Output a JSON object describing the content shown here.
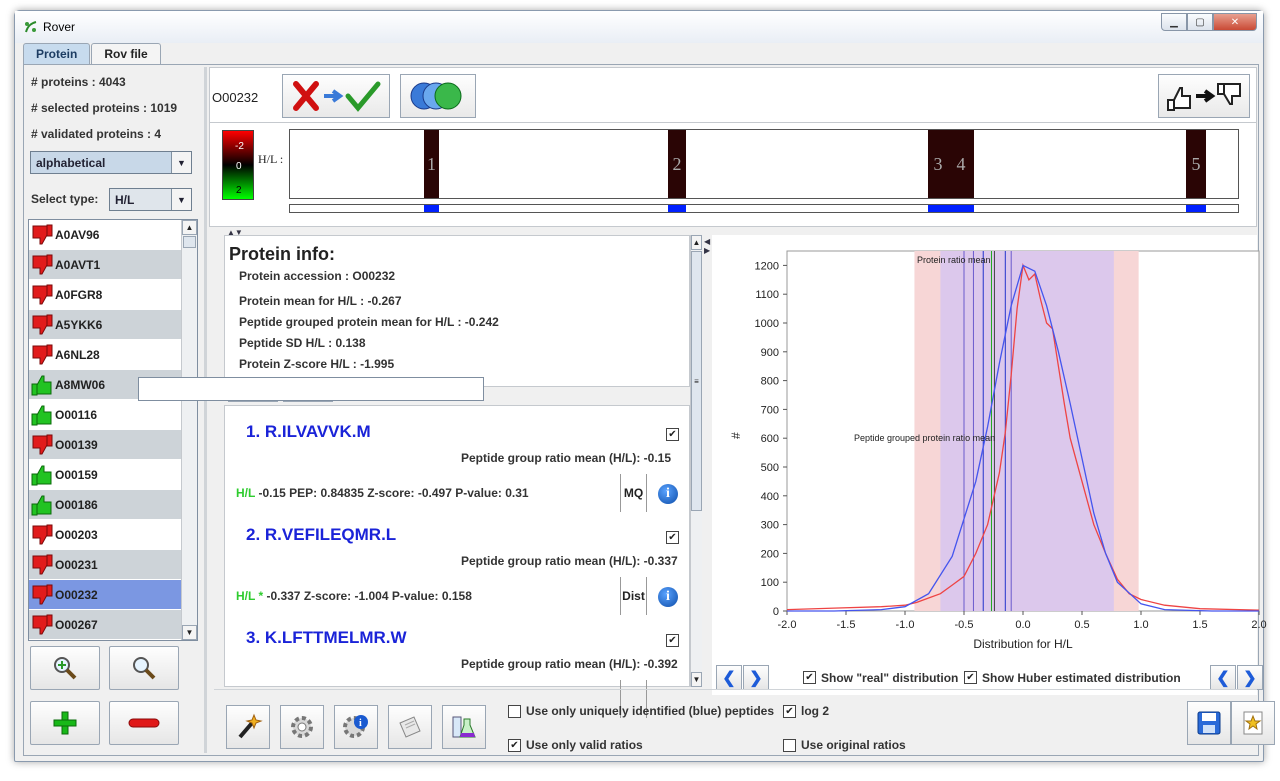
{
  "window": {
    "title": "Rover",
    "min_label": "▁",
    "max_label": "▢",
    "close_label": "✕"
  },
  "tabs": [
    {
      "label": "Protein"
    },
    {
      "label": "Rov file"
    }
  ],
  "stats": {
    "proteins": "# proteins : 4043",
    "selected": "# selected proteins : 1019",
    "validated": "# validated proteins : 4"
  },
  "sort_combo": {
    "value": "alphabetical"
  },
  "select_type": {
    "label": "Select type:",
    "value": "H/L"
  },
  "protein_list": [
    {
      "name": "A0AV96",
      "thumb": "red"
    },
    {
      "name": "A0AVT1",
      "thumb": "red"
    },
    {
      "name": "A0FGR8",
      "thumb": "red"
    },
    {
      "name": "A5YKK6",
      "thumb": "red"
    },
    {
      "name": "A6NL28",
      "thumb": "red"
    },
    {
      "name": "A8MW06",
      "thumb": "green"
    },
    {
      "name": "O00116",
      "thumb": "green"
    },
    {
      "name": "O00139",
      "thumb": "red"
    },
    {
      "name": "O00159",
      "thumb": "green"
    },
    {
      "name": "O00186",
      "thumb": "green"
    },
    {
      "name": "O00203",
      "thumb": "red"
    },
    {
      "name": "O00231",
      "thumb": "red"
    },
    {
      "name": "O00232",
      "thumb": "red"
    },
    {
      "name": "O00267",
      "thumb": "red"
    }
  ],
  "selected_protein": "O00232",
  "header": {
    "accession": "O00232"
  },
  "colorbar": {
    "top": "-2",
    "mid": "0",
    "bottom": "2",
    "label": "H/L :"
  },
  "peptide_bars": [
    "1",
    "2",
    "3",
    "4",
    "5"
  ],
  "protein_info": {
    "title": "Protein info:",
    "accession": "Protein accession : O00232",
    "mean": "Protein mean for H/L : -0.267",
    "grouped_mean": "Peptide grouped protein mean for H/L : -0.242",
    "sd": "Peptide SD H/L : 0.138",
    "zscore": "Protein Z-score H/L : -1.995"
  },
  "peptides": [
    {
      "title": "1. R.ILVAVVK.M",
      "group_mean": "Peptide group ratio mean (H/L): -0.15",
      "hl": "H/L",
      "stats": " -0.15 PEP:  0.84835 Z-score:  -0.497 P-value:  0.31",
      "tag": "MQ"
    },
    {
      "title": "2. R.VEFILEQMR.L",
      "group_mean": "Peptide group ratio mean (H/L): -0.337",
      "hl": "H/L *",
      "stats": " -0.337 Z-score:  -1.004 P-value:  0.158",
      "tag": "Dist"
    },
    {
      "title": "3. K.LFTTMELMR.W",
      "group_mean": "Peptide group ratio mean (H/L): -0.392",
      "hl": "",
      "stats": "",
      "tag": ""
    }
  ],
  "chart_data": {
    "type": "line",
    "title": "",
    "xlabel": "Distribution for H/L",
    "ylabel": "#",
    "xlim": [
      -2.0,
      2.0
    ],
    "ylim": [
      0,
      1250
    ],
    "x_ticks": [
      "-2.0",
      "-1.5",
      "-1.0",
      "-0.5",
      "0.0",
      "0.5",
      "1.0",
      "1.5",
      "2.0"
    ],
    "y_ticks": [
      "0",
      "100",
      "200",
      "300",
      "400",
      "500",
      "600",
      "700",
      "800",
      "900",
      "1000",
      "1100",
      "1200"
    ],
    "annotations": [
      "Protein ratio mean",
      "Peptide grouped protein ratio mean"
    ],
    "series": [
      {
        "color": "#ee4444",
        "x": [
          -2.0,
          -1.6,
          -1.2,
          -1.0,
          -0.9,
          -0.8,
          -0.7,
          -0.6,
          -0.5,
          -0.4,
          -0.3,
          -0.2,
          -0.15,
          -0.1,
          -0.05,
          0.0,
          0.05,
          0.1,
          0.15,
          0.2,
          0.25,
          0.3,
          0.35,
          0.4,
          0.5,
          0.6,
          0.7,
          0.8,
          0.9,
          1.0,
          1.2,
          1.5,
          2.0
        ],
        "values": [
          5,
          10,
          15,
          20,
          30,
          45,
          60,
          90,
          120,
          200,
          300,
          480,
          620,
          820,
          1050,
          1200,
          1150,
          1170,
          1080,
          1000,
          980,
          850,
          720,
          600,
          450,
          300,
          200,
          110,
          60,
          40,
          20,
          8,
          3
        ]
      },
      {
        "color": "#4455ee",
        "x": [
          -2.0,
          -1.6,
          -1.2,
          -1.0,
          -0.8,
          -0.6,
          -0.4,
          -0.3,
          -0.2,
          -0.1,
          0.0,
          0.1,
          0.2,
          0.3,
          0.4,
          0.5,
          0.6,
          0.7,
          0.8,
          1.0,
          1.2,
          1.6,
          2.0
        ],
        "values": [
          0,
          0,
          5,
          15,
          60,
          190,
          450,
          640,
          860,
          1060,
          1200,
          1180,
          1060,
          900,
          720,
          530,
          340,
          200,
          100,
          25,
          5,
          0,
          0
        ]
      }
    ],
    "bands": [
      {
        "from": -0.92,
        "to": 0.98,
        "color": "#f7d6d6"
      },
      {
        "from": -0.7,
        "to": 0.77,
        "color": "#dcc8ec"
      }
    ],
    "vlines": [
      {
        "x": -0.5,
        "color": "#6a5acd"
      },
      {
        "x": -0.42,
        "color": "#6a5acd"
      },
      {
        "x": -0.337,
        "color": "#2233cc"
      },
      {
        "x": -0.267,
        "color": "#22aa22"
      },
      {
        "x": -0.242,
        "color": "#444444"
      },
      {
        "x": -0.15,
        "color": "#2233cc"
      },
      {
        "x": -0.1,
        "color": "#6a5acd"
      }
    ]
  },
  "chart_controls": {
    "show_real": "Show \"real\" distribution",
    "show_huber": "Show Huber estimated distribution"
  },
  "options": {
    "unique_peptides": "Use only uniquely identified (blue) peptides",
    "valid_ratios": "Use only valid ratios",
    "log2": "log 2",
    "original_ratios": "Use original ratios"
  },
  "colors": {
    "accent": "#1a23d8",
    "selected_row": "#7b97e2",
    "alt_row": "#cdd3d8"
  }
}
